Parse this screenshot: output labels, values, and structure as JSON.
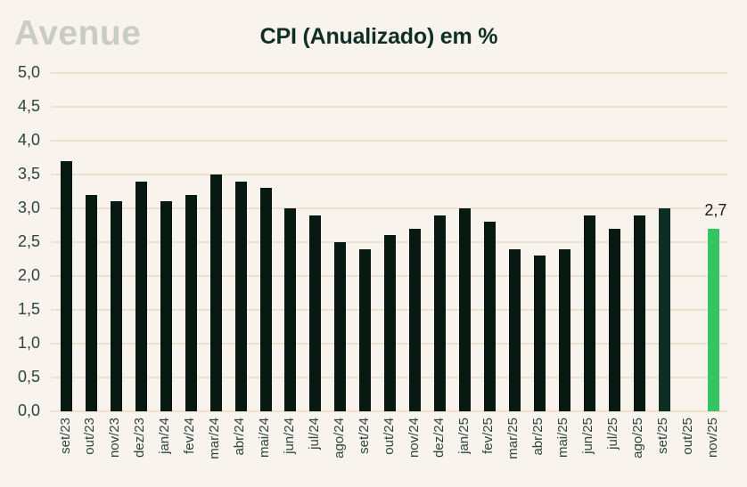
{
  "header": {
    "logo_text": "Avenue",
    "title": "CPI (Anualizado) em %"
  },
  "colors": {
    "background": "#f8f3ec",
    "gridline": "#ede0cf",
    "bar_default": "#081911",
    "bar_latest_actual": "#0d2e23",
    "bar_estimate": "#35c464",
    "axis_label": "#2c443a",
    "title": "#0f2f24",
    "logo": "#c9ccc5",
    "annotation_text": "#1d1d1b"
  },
  "chart_data": {
    "type": "bar",
    "title": "CPI (Anualizado) em %",
    "xlabel": "",
    "ylabel": "",
    "ylim": [
      0,
      5
    ],
    "ytick_step": 0.5,
    "ytick_labels": [
      "0,0",
      "0,5",
      "1,0",
      "1,5",
      "2,0",
      "2,5",
      "3,0",
      "3,5",
      "4,0",
      "4,5",
      "5,0"
    ],
    "grid": true,
    "legend": "none",
    "decimal_separator": ",",
    "categories": [
      "set/23",
      "out/23",
      "nov/23",
      "dez/23",
      "jan/24",
      "fev/24",
      "mar/24",
      "abr/24",
      "mai/24",
      "jun/24",
      "jul/24",
      "ago/24",
      "set/24",
      "out/24",
      "nov/24",
      "dez/24",
      "jan/25",
      "fev/25",
      "mar/25",
      "abr/25",
      "mai/25",
      "jun/25",
      "jul/25",
      "ago/25",
      "set/25",
      "out/25",
      "nov/25"
    ],
    "values": [
      3.7,
      3.2,
      3.1,
      3.4,
      3.1,
      3.2,
      3.5,
      3.4,
      3.3,
      3.0,
      2.9,
      2.5,
      2.4,
      2.6,
      2.7,
      2.9,
      3.0,
      2.8,
      2.4,
      2.3,
      2.4,
      2.9,
      2.7,
      2.9,
      3.0,
      null,
      2.7
    ],
    "highlight": {
      "latest_actual_index": 24,
      "estimate_index": 26
    },
    "annotation": {
      "label": "2,7",
      "category": "nov/25",
      "value": 2.7
    }
  },
  "layout_hints": {
    "missing_bar_category": "out/25",
    "note": "nov/25 bar drawn in bright green as estimate with data label above it"
  }
}
